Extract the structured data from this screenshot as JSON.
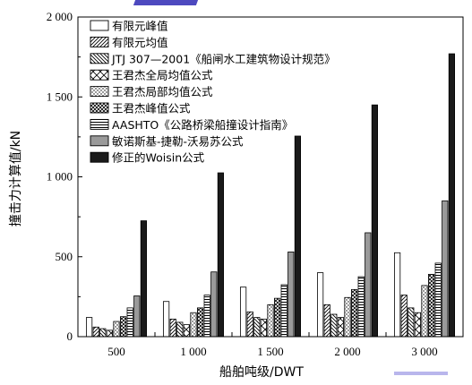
{
  "chart_data": {
    "type": "bar",
    "xlabel": "船舶吨级/DWT",
    "ylabel": "撞击力计算值/kN",
    "ylim": [
      0,
      2000
    ],
    "yticks": [
      0,
      500,
      1000,
      1500,
      2000
    ],
    "ytick_labels": [
      "0",
      "500",
      "1 000",
      "1 500",
      "2 000"
    ],
    "categories": [
      "500",
      "1 000",
      "1 500",
      "2 000",
      "3 000"
    ],
    "legend_position": "top-left",
    "grid": false,
    "series": [
      {
        "name": "有限元峰值",
        "pattern": "white",
        "values": [
          120,
          220,
          310,
          400,
          525
        ]
      },
      {
        "name": "有限元均值",
        "pattern": "diag-dense",
        "values": [
          60,
          110,
          155,
          200,
          260
        ]
      },
      {
        "name": "JTJ 307—2001《船闸水工建筑物设计规范》",
        "pattern": "diag-back",
        "values": [
          50,
          90,
          120,
          140,
          180
        ]
      },
      {
        "name": "王君杰全局均值公式",
        "pattern": "xbox",
        "values": [
          40,
          75,
          110,
          120,
          150
        ]
      },
      {
        "name": "王君杰局部均值公式",
        "pattern": "dots",
        "values": [
          95,
          150,
          200,
          245,
          320
        ]
      },
      {
        "name": "王君杰峰值公式",
        "pattern": "crosshatch",
        "values": [
          125,
          180,
          240,
          295,
          390
        ]
      },
      {
        "name": "AASHTO《公路桥梁船撞设计指南》",
        "pattern": "hlines",
        "values": [
          180,
          260,
          325,
          375,
          460
        ]
      },
      {
        "name": "敏诺斯基-捷勒-沃易苏公式",
        "pattern": "gray",
        "values": [
          255,
          405,
          530,
          650,
          850
        ]
      },
      {
        "name": "修正的Woisin公式",
        "pattern": "black",
        "values": [
          725,
          1025,
          1255,
          1450,
          1770
        ]
      }
    ]
  }
}
